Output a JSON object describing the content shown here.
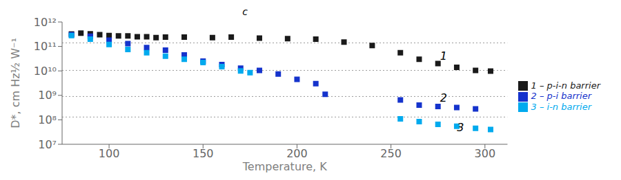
{
  "chart_data": {
    "type": "scatter",
    "title": "c",
    "x_label": "Temperature, K",
    "y_label": "D*, cm Hz½ W⁻¹",
    "log": "y",
    "xlim": [
      75,
      312
    ],
    "xticks": [
      100,
      150,
      200,
      250,
      300
    ],
    "ylim": [
      10000000,
      1000000000000
    ],
    "yticks": [
      {
        "value": 10000000,
        "label": "10⁷"
      },
      {
        "value": 100000000,
        "label": "10⁸"
      },
      {
        "value": 1000000000,
        "label": "10⁹"
      },
      {
        "value": 10000000000,
        "label": "10¹⁰"
      },
      {
        "value": 100000000000,
        "label": "10¹¹"
      },
      {
        "value": 1000000000000,
        "label": "10¹²"
      }
    ],
    "grid": false,
    "legend": "right",
    "hlines": [
      140000000000.0,
      10500000000.0,
      900000000.0,
      130000000.0
    ],
    "series": [
      {
        "name": "1 – p-i-n barrier",
        "color": "#1a1a1a",
        "marker": "square",
        "x": [
          80,
          85,
          90,
          95,
          100,
          105,
          110,
          115,
          120,
          125,
          130,
          140,
          155,
          165,
          180,
          195,
          210,
          225,
          240,
          255,
          265,
          275,
          285,
          295,
          303
        ],
        "values": [
          320000000000.0,
          350000000000.0,
          330000000000.0,
          300000000000.0,
          280000000000.0,
          270000000000.0,
          270000000000.0,
          250000000000.0,
          250000000000.0,
          230000000000.0,
          240000000000.0,
          240000000000.0,
          230000000000.0,
          240000000000.0,
          220000000000.0,
          210000000000.0,
          200000000000.0,
          150000000000.0,
          110000000000.0,
          55000000000.0,
          30000000000.0,
          20000000000.0,
          14000000000.0,
          10500000000.0,
          9800000000.0
        ]
      },
      {
        "name": "2 – p-i barrier",
        "color": "#1533cc",
        "marker": "square",
        "x": [
          80,
          90,
          100,
          110,
          120,
          130,
          140,
          150,
          160,
          170,
          180,
          190,
          200,
          210,
          215,
          255,
          265,
          275,
          285,
          295
        ],
        "values": [
          300000000000.0,
          260000000000.0,
          180000000000.0,
          130000000000.0,
          90000000000.0,
          70000000000.0,
          45000000000.0,
          25000000000.0,
          18000000000.0,
          13000000000.0,
          10500000000.0,
          7500000000.0,
          4500000000.0,
          3000000000.0,
          1100000000.0,
          650000000.0,
          400000000.0,
          350000000.0,
          320000000.0,
          280000000.0
        ]
      },
      {
        "name": "3 – i-n barrier",
        "color": "#00aaee",
        "marker": "square",
        "x": [
          80,
          90,
          100,
          110,
          120,
          130,
          140,
          150,
          160,
          170,
          175,
          255,
          265,
          275,
          285,
          295,
          303
        ],
        "values": [
          280000000000.0,
          200000000000.0,
          120000000000.0,
          75000000000.0,
          55000000000.0,
          40000000000.0,
          30000000000.0,
          22000000000.0,
          15000000000.0,
          10000000000.0,
          8500000000.0,
          110000000.0,
          85000000.0,
          65000000.0,
          55000000.0,
          45000000.0,
          40000000.0
        ]
      }
    ],
    "annotations": [
      {
        "text": "1",
        "x": 278,
        "y": 25000000000
      },
      {
        "text": "2",
        "x": 278,
        "y": 500000000
      },
      {
        "text": "3",
        "x": 287,
        "y": 30000000
      }
    ]
  }
}
